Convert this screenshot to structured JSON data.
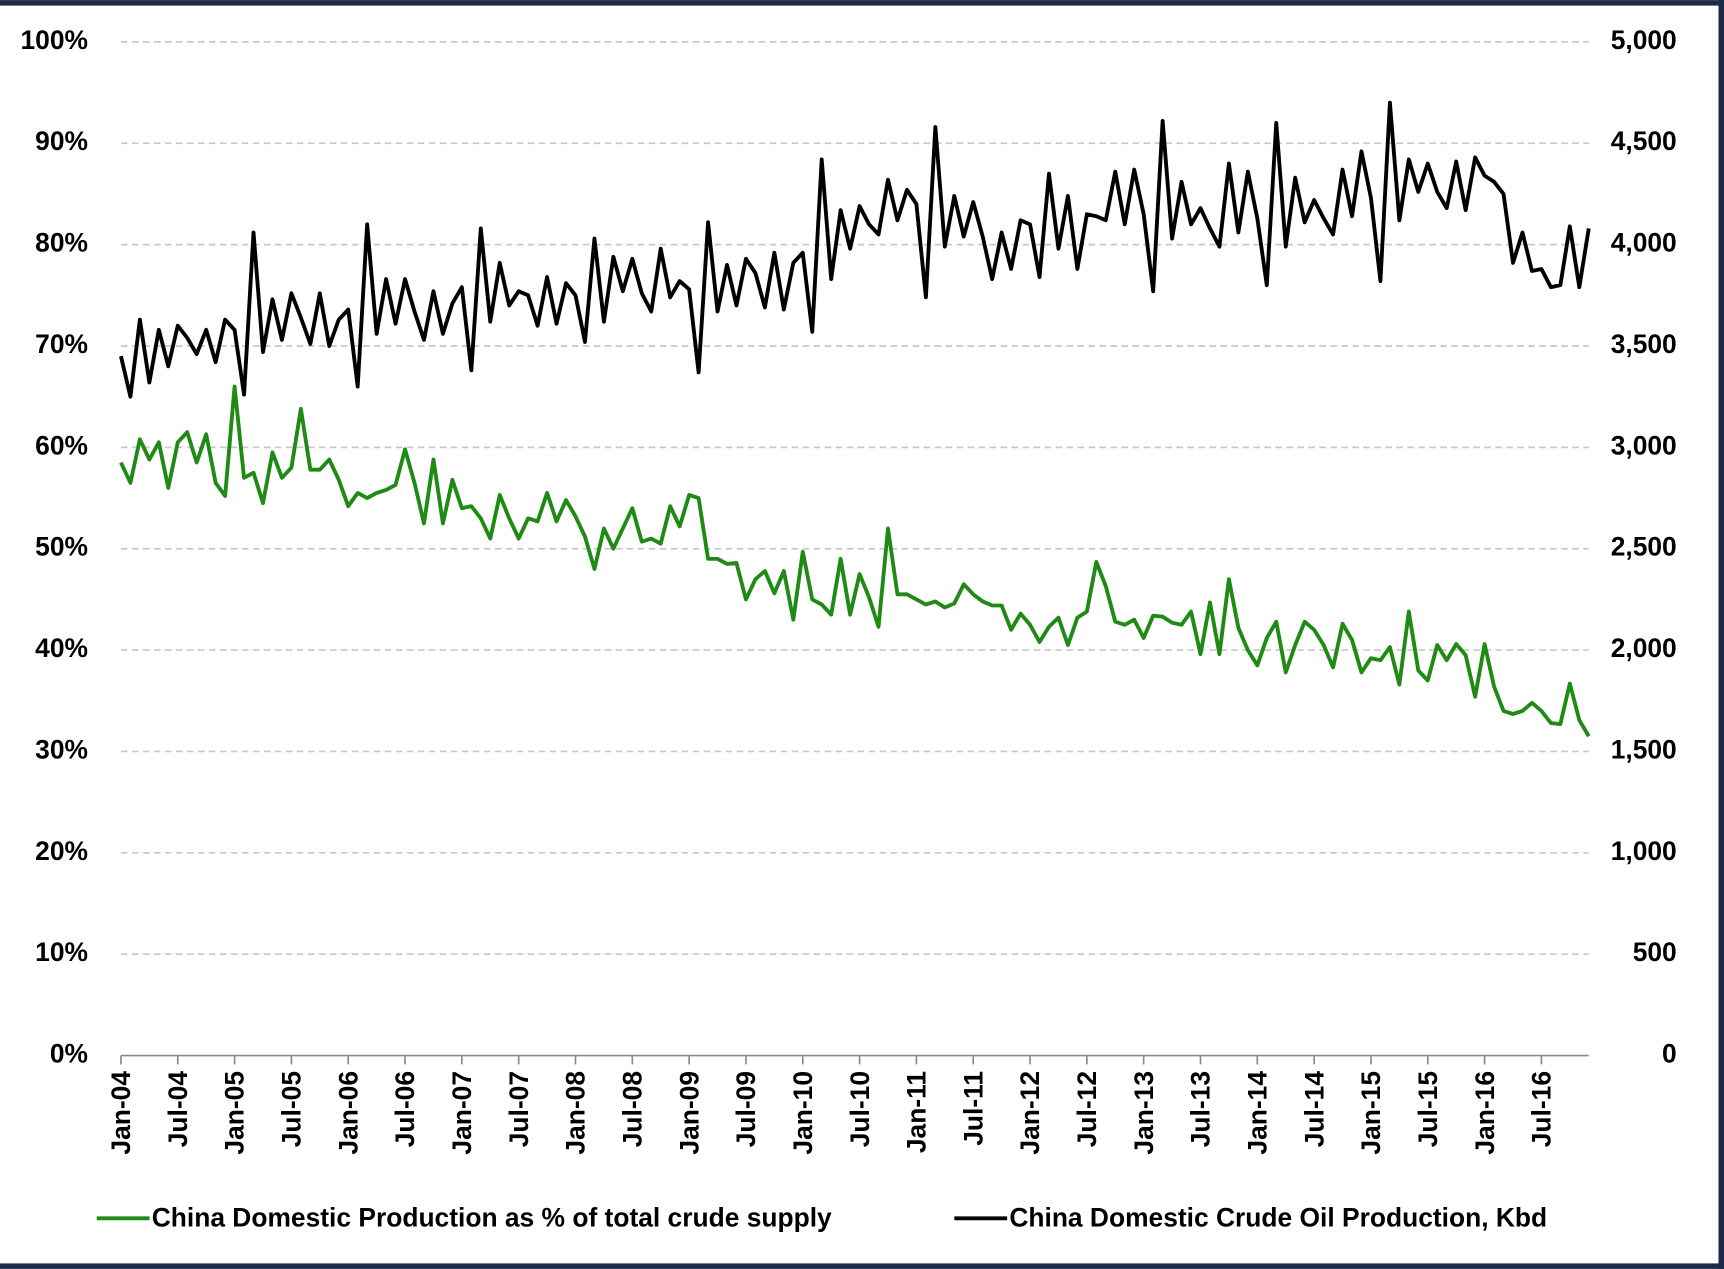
{
  "chart_data": {
    "type": "line",
    "categories": [
      "Jan-04",
      null,
      null,
      null,
      null,
      null,
      "Jul-04",
      null,
      null,
      null,
      null,
      null,
      "Jan-05",
      null,
      null,
      null,
      null,
      null,
      "Jul-05",
      null,
      null,
      null,
      null,
      null,
      "Jan-06",
      null,
      null,
      null,
      null,
      null,
      "Jul-06",
      null,
      null,
      null,
      null,
      null,
      "Jan-07",
      null,
      null,
      null,
      null,
      null,
      "Jul-07",
      null,
      null,
      null,
      null,
      null,
      "Jan-08",
      null,
      null,
      null,
      null,
      null,
      "Jul-08",
      null,
      null,
      null,
      null,
      null,
      "Jan-09",
      null,
      null,
      null,
      null,
      null,
      "Jul-09",
      null,
      null,
      null,
      null,
      null,
      "Jan-10",
      null,
      null,
      null,
      null,
      null,
      "Jul-10",
      null,
      null,
      null,
      null,
      null,
      "Jan-11",
      null,
      null,
      null,
      null,
      null,
      "Jul-11",
      null,
      null,
      null,
      null,
      null,
      "Jan-12",
      null,
      null,
      null,
      null,
      null,
      "Jul-12",
      null,
      null,
      null,
      null,
      null,
      "Jan-13",
      null,
      null,
      null,
      null,
      null,
      "Jul-13",
      null,
      null,
      null,
      null,
      null,
      "Jan-14",
      null,
      null,
      null,
      null,
      null,
      "Jul-14",
      null,
      null,
      null,
      null,
      null,
      "Jan-15",
      null,
      null,
      null,
      null,
      null,
      "Jul-15",
      null,
      null,
      null,
      null,
      null,
      "Jan-16",
      null,
      null,
      null,
      null,
      null,
      "Jul-16",
      null,
      null,
      null,
      null,
      null
    ],
    "series": [
      {
        "name": "China Domestic Production as % of total crude supply",
        "color": "#1f8a14",
        "axis": "y",
        "values": [
          58.5,
          56.5,
          60.8,
          58.8,
          60.5,
          56,
          60.5,
          61.5,
          58.5,
          61.3,
          56.5,
          55.2,
          66,
          57,
          57.5,
          54.5,
          59.5,
          57,
          58,
          63.8,
          57.8,
          57.8,
          58.8,
          56.8,
          54.2,
          55.5,
          55,
          55.5,
          55.8,
          56.3,
          59.8,
          56.5,
          52.5,
          58.8,
          52.5,
          56.8,
          54,
          54.2,
          53,
          51,
          55.3,
          53,
          51,
          53,
          52.7,
          55.5,
          52.7,
          54.8,
          53.2,
          51.2,
          48,
          52,
          50,
          52,
          54,
          50.7,
          51,
          50.5,
          54.2,
          52.2,
          55.3,
          55,
          49,
          49,
          48.5,
          48.6,
          45,
          47,
          47.8,
          45.6,
          47.8,
          43,
          49.7,
          45,
          44.5,
          43.5,
          49,
          43.5,
          47.5,
          45.2,
          42.3,
          52,
          45.5,
          45.5,
          45,
          44.5,
          44.8,
          44.2,
          44.6,
          46.5,
          45.5,
          44.8,
          44.4,
          44.4,
          42,
          43.6,
          42.5,
          40.8,
          42.3,
          43.2,
          40.5,
          43.2,
          43.8,
          48.7,
          46.3,
          42.8,
          42.5,
          43,
          41.2,
          43.4,
          43.3,
          42.7,
          42.5,
          43.8,
          39.6,
          44.7,
          39.6,
          47,
          42.2,
          40,
          38.5,
          41.2,
          42.8,
          37.8,
          40.5,
          42.8,
          42,
          40.5,
          38.3,
          42.6,
          41,
          37.8,
          39.2,
          39,
          40.3,
          36.6,
          43.8,
          38,
          37,
          40.5,
          39,
          40.6,
          39.5,
          35.4,
          40.6,
          36.4,
          34,
          33.7,
          34,
          34.8,
          34,
          32.8,
          32.7,
          36.7,
          33.1,
          31.5
        ]
      },
      {
        "name": "China Domestic Crude Oil Production, Kbd",
        "color": "#000000",
        "axis": "y2",
        "values": [
          3450,
          3250,
          3630,
          3320,
          3580,
          3400,
          3600,
          3540,
          3460,
          3580,
          3420,
          3630,
          3580,
          3260,
          4060,
          3470,
          3730,
          3530,
          3760,
          3640,
          3510,
          3760,
          3500,
          3630,
          3680,
          3300,
          4100,
          3560,
          3830,
          3610,
          3830,
          3670,
          3530,
          3770,
          3560,
          3710,
          3790,
          3380,
          4080,
          3620,
          3910,
          3700,
          3770,
          3750,
          3600,
          3840,
          3610,
          3810,
          3750,
          3520,
          4030,
          3620,
          3940,
          3770,
          3930,
          3760,
          3670,
          3980,
          3740,
          3820,
          3780,
          3370,
          4110,
          3670,
          3900,
          3700,
          3930,
          3860,
          3690,
          3960,
          3680,
          3910,
          3960,
          3570,
          4420,
          3830,
          4170,
          3980,
          4190,
          4100,
          4050,
          4320,
          4120,
          4270,
          4200,
          3740,
          4580,
          3990,
          4240,
          4040,
          4210,
          4040,
          3830,
          4060,
          3880,
          4120,
          4100,
          3840,
          4350,
          3980,
          4240,
          3880,
          4150,
          4140,
          4120,
          4360,
          4100,
          4370,
          4150,
          3770,
          4610,
          4030,
          4310,
          4100,
          4180,
          4080,
          3990,
          4400,
          4060,
          4360,
          4130,
          3800,
          4600,
          3990,
          4330,
          4110,
          4220,
          4130,
          4050,
          4370,
          4140,
          4460,
          4230,
          3820,
          4700,
          4120,
          4420,
          4260,
          4400,
          4260,
          4180,
          4410,
          4170,
          4430,
          4340,
          4310,
          4250,
          3910,
          4060,
          3870,
          3880,
          3790,
          3800,
          4090,
          3790,
          4080
        ]
      }
    ],
    "ylim": [
      0,
      100
    ],
    "yticks": [
      {
        "value": 0,
        "label": "0%"
      },
      {
        "value": 10,
        "label": "10%"
      },
      {
        "value": 20,
        "label": "20%"
      },
      {
        "value": 30,
        "label": "30%"
      },
      {
        "value": 40,
        "label": "40%"
      },
      {
        "value": 50,
        "label": "50%"
      },
      {
        "value": 60,
        "label": "60%"
      },
      {
        "value": 70,
        "label": "70%"
      },
      {
        "value": 80,
        "label": "80%"
      },
      {
        "value": 90,
        "label": "90%"
      },
      {
        "value": 100,
        "label": "100%"
      }
    ],
    "y2lim": [
      0,
      5000
    ],
    "y2ticks": [
      0,
      500,
      {
        "value": 1000,
        "label": "1,000"
      },
      {
        "value": 1500,
        "label": "1,500"
      },
      {
        "value": 2000,
        "label": "2,000"
      },
      {
        "value": 2500,
        "label": "2,500"
      },
      {
        "value": 3000,
        "label": "3,000"
      },
      {
        "value": 3500,
        "label": "3,500"
      },
      {
        "value": 4000,
        "label": "4,000"
      },
      {
        "value": 4500,
        "label": "4,500"
      },
      {
        "value": 5000,
        "label": "5,000"
      }
    ],
    "grid": true,
    "legend": "bottom"
  }
}
